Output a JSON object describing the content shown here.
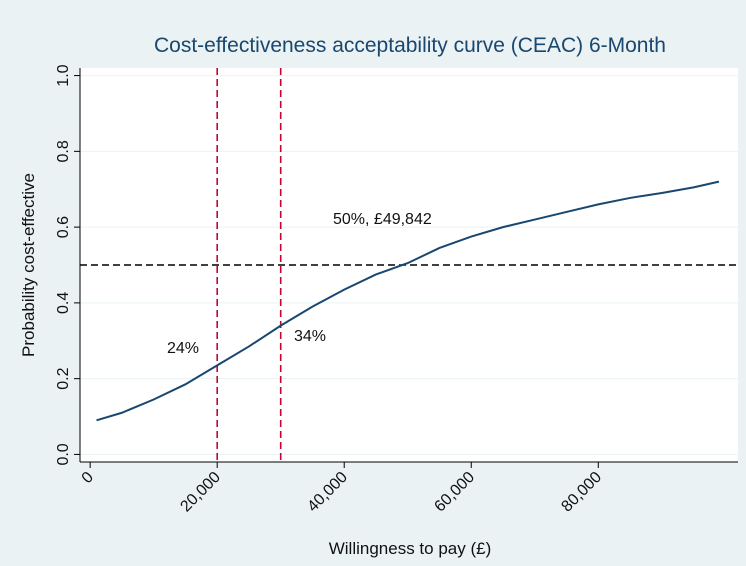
{
  "chart_data": {
    "type": "line",
    "title": "Cost-effectiveness acceptability curve (CEAC) 6-Month",
    "xlabel": "Willingness to pay (£)",
    "ylabel": "Probability cost-effective",
    "x": [
      1000,
      5000,
      10000,
      15000,
      20000,
      25000,
      30000,
      35000,
      40000,
      45000,
      50000,
      55000,
      60000,
      65000,
      70000,
      75000,
      80000,
      85000,
      90000,
      95000,
      99000
    ],
    "series": [
      {
        "color": "#1a476f",
        "values": [
          0.09,
          0.11,
          0.145,
          0.185,
          0.235,
          0.285,
          0.34,
          0.39,
          0.435,
          0.475,
          0.505,
          0.545,
          0.575,
          0.6,
          0.62,
          0.64,
          0.66,
          0.677,
          0.69,
          0.705,
          0.72
        ]
      }
    ],
    "xlim": [
      -1600,
      102000
    ],
    "ylim": [
      -0.02,
      1.02
    ],
    "xticks": [
      0,
      {
        "value": 20000,
        "label": "20,000"
      },
      {
        "value": 40000,
        "label": "40,000"
      },
      {
        "value": 60000,
        "label": "60,000"
      },
      {
        "value": 80000,
        "label": "80,000"
      }
    ],
    "yticks": [
      {
        "value": 0,
        "label": "0.0"
      },
      0.2,
      0.4,
      0.6,
      0.8,
      {
        "value": 1,
        "label": "1.0"
      }
    ],
    "grid": true,
    "reference_lines": {
      "x": [
        20000,
        30000
      ],
      "x_color": "#c10534",
      "y": [
        0.5
      ],
      "y_color": "#000000"
    },
    "annotations": [
      "24%",
      "34%",
      "50%, £49,842"
    ]
  }
}
